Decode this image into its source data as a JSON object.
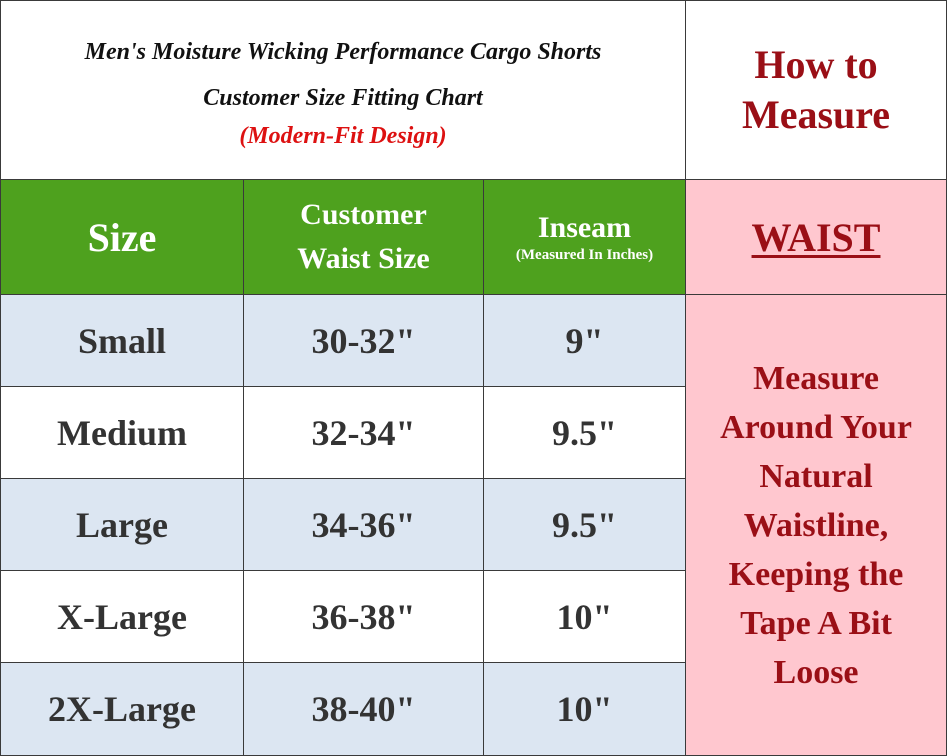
{
  "title": {
    "line1": "Men's Moisture Wicking Performance Cargo Shorts",
    "line2": "Customer Size Fitting Chart",
    "line3": "(Modern-Fit Design)"
  },
  "how_to_measure": {
    "line1": "How to",
    "line2": "Measure"
  },
  "headers": {
    "size": "Size",
    "waist_line1": "Customer",
    "waist_line2": "Waist Size",
    "inseam": "Inseam",
    "inseam_note": "(Measured In Inches)",
    "waist_label": "WAIST"
  },
  "rows": [
    {
      "size": "Small",
      "waist": "30-32\"",
      "inseam": "9\""
    },
    {
      "size": "Medium",
      "waist": "32-34\"",
      "inseam": "9.5\""
    },
    {
      "size": "Large",
      "waist": "34-36\"",
      "inseam": "9.5\""
    },
    {
      "size": "X-Large",
      "waist": "36-38\"",
      "inseam": "10\""
    },
    {
      "size": "2X-Large",
      "waist": "38-40\"",
      "inseam": "10\""
    }
  ],
  "instructions": [
    "Measure",
    "Around Your",
    "Natural",
    "Waistline,",
    "Keeping the",
    "Tape A Bit",
    "Loose"
  ],
  "colors": {
    "header_green": "#4ea11e",
    "pink_panel": "#ffc7cf",
    "dark_red": "#9a0f16",
    "bright_red": "#dd1111",
    "row_shade": "#dce6f2"
  }
}
